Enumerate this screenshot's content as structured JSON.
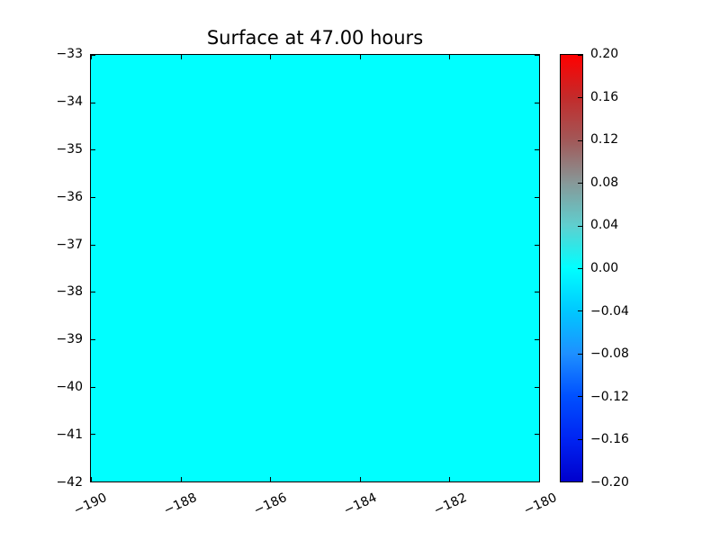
{
  "chart_data": {
    "type": "heatmap",
    "title": "Surface at 47.00 hours",
    "x": {
      "range": [
        -190,
        -180
      ],
      "tick_labels": [
        "−190",
        "−188",
        "−186",
        "−184",
        "−182",
        "−180"
      ]
    },
    "y": {
      "range": [
        -42,
        -33
      ],
      "tick_labels": [
        "−33",
        "−34",
        "−35",
        "−36",
        "−37",
        "−38",
        "−39",
        "−40",
        "−41",
        "−42"
      ]
    },
    "uniform_value": 0.0,
    "fill_color": "#00ffff",
    "legend": "none",
    "grid": false,
    "colorbar": {
      "position": "right",
      "vmin": -0.2,
      "vmax": 0.2,
      "tick_labels": [
        "0.20",
        "0.16",
        "0.12",
        "0.08",
        "0.04",
        "0.00",
        "−0.04",
        "−0.08",
        "−0.12",
        "−0.16",
        "−0.20"
      ],
      "gradient": [
        {
          "pos": 0,
          "color": "#ff0000"
        },
        {
          "pos": 10,
          "color": "#c32b2b"
        },
        {
          "pos": 20,
          "color": "#a25858"
        },
        {
          "pos": 30,
          "color": "#879898"
        },
        {
          "pos": 40,
          "color": "#5fcfcf"
        },
        {
          "pos": 50,
          "color": "#00ffff"
        },
        {
          "pos": 60,
          "color": "#00c8ff"
        },
        {
          "pos": 70,
          "color": "#1e90ff"
        },
        {
          "pos": 80,
          "color": "#0050ff"
        },
        {
          "pos": 90,
          "color": "#0024f2"
        },
        {
          "pos": 100,
          "color": "#0000cd"
        }
      ]
    }
  }
}
